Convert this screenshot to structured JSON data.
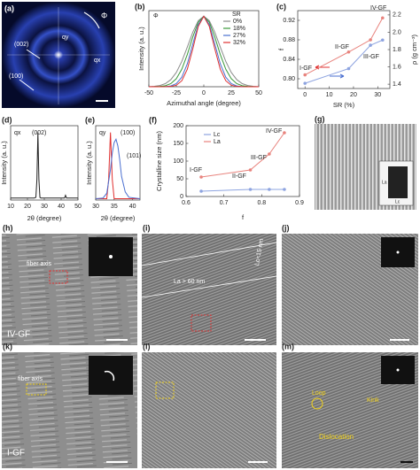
{
  "chart_data": [
    {
      "type": "line",
      "panel": "(b)",
      "xlabel": "Azimuthal angle (degree)",
      "ylabel": "Intensity (a. u.)",
      "annotations": [
        {
          "text": "Φ",
          "color": "#222"
        }
      ],
      "legend_title": "SR",
      "x": [
        -50,
        -45,
        -40,
        -35,
        -30,
        -25,
        -20,
        -15,
        -10,
        -5,
        0,
        5,
        10,
        15,
        20,
        25,
        30,
        35,
        40,
        45,
        50
      ],
      "series": [
        {
          "name": "0%",
          "color": "#8c8c8c",
          "values": [
            0.002,
            0.006,
            0.017,
            0.044,
            0.101,
            0.203,
            0.36,
            0.563,
            0.775,
            0.938,
            1,
            0.938,
            0.775,
            0.563,
            0.36,
            0.203,
            0.101,
            0.044,
            0.017,
            0.006,
            0.002
          ]
        },
        {
          "name": "18%",
          "color": "#3a9a3a",
          "values": [
            0,
            0.001,
            0.004,
            0.014,
            0.044,
            0.114,
            0.249,
            0.458,
            0.707,
            0.917,
            1,
            0.917,
            0.707,
            0.458,
            0.249,
            0.114,
            0.044,
            0.014,
            0.004,
            0.001,
            0
          ]
        },
        {
          "name": "27%",
          "color": "#4a6fd0",
          "values": [
            0,
            0,
            0,
            0.002,
            0.011,
            0.044,
            0.135,
            0.325,
            0.607,
            0.882,
            1,
            0.882,
            0.607,
            0.325,
            0.135,
            0.044,
            0.011,
            0.002,
            0,
            0,
            0
          ]
        },
        {
          "name": "32%",
          "color": "#e03030",
          "values": [
            0,
            0,
            0,
            0.001,
            0.004,
            0.021,
            0.085,
            0.249,
            0.539,
            0.857,
            1,
            0.857,
            0.539,
            0.249,
            0.085,
            0.021,
            0.004,
            0.001,
            0,
            0,
            0
          ]
        }
      ],
      "xlim": [
        -50,
        50
      ],
      "xticks": [
        -50,
        -25,
        0,
        25,
        50
      ],
      "ylim": [
        0,
        1.08
      ]
    },
    {
      "type": "line",
      "panel": "(c)",
      "xlabel": "SR (%)",
      "ylabel": "f",
      "y2label": "ρ (g cm⁻³)",
      "markers": true,
      "annotations": [
        {
          "text": "I-GF",
          "color": "#222"
        },
        {
          "text": "II-GF",
          "color": "#222"
        },
        {
          "text": "III-GF",
          "color": "#222"
        },
        {
          "text": "IV-GF",
          "color": "#222"
        }
      ],
      "x": [
        0,
        18,
        27,
        32
      ],
      "series": [
        {
          "color": "#e8837d",
          "values": [
            0.808,
            0.855,
            0.88,
            0.925
          ]
        },
        {
          "color": "#8ea4e0",
          "axis": "y2",
          "values": [
            1.41,
            1.58,
            1.85,
            1.91
          ]
        }
      ],
      "xlim": [
        -3,
        35
      ],
      "xticks": [
        0,
        10,
        20,
        30
      ],
      "ylim": [
        0.78,
        0.94
      ],
      "yticks": [
        {
          "value": 0.8,
          "label": "0.80"
        },
        0.84,
        0.88,
        0.92
      ],
      "y2lim": [
        1.35,
        2.25
      ],
      "y2ticks": [
        1.4,
        1.6,
        1.8,
        {
          "value": 2,
          "label": "2.0"
        },
        2.2
      ]
    },
    {
      "type": "line",
      "panel": "(d)",
      "xlabel": "2θ (degree)",
      "ylabel": "Intensity (a. u.)",
      "annotations": [
        {
          "text": "qx",
          "color": "#222"
        },
        {
          "text": "(002)",
          "color": "#222"
        }
      ],
      "x": [
        10,
        24,
        25,
        25.6,
        26.2,
        26.8,
        27.4,
        28,
        42,
        42.6,
        43.2,
        50
      ],
      "series": [
        {
          "color": "#222",
          "values": [
            0.03,
            0.03,
            0.04,
            0.3,
            1,
            0.3,
            0.04,
            0.03,
            0.03,
            0.07,
            0.03,
            0.03
          ]
        }
      ],
      "xlim": [
        10,
        50
      ],
      "xticks": [
        10,
        20,
        30,
        40,
        50
      ],
      "ylim": [
        0,
        1.1
      ]
    },
    {
      "type": "line",
      "panel": "(e)",
      "xlabel": "2θ (degree)",
      "ylabel": "Intensity (a. u.)",
      "annotations": [
        {
          "text": "qy",
          "color": "#222"
        },
        {
          "text": "(100)",
          "color": "#e03030"
        },
        {
          "text": "(101)",
          "color": "#4a6fd0"
        }
      ],
      "series": [
        {
          "color": "#e03030",
          "x": [
            30,
            33,
            33.5,
            34,
            34.5,
            35,
            42
          ],
          "values": [
            0.02,
            0.02,
            0.3,
            1,
            0.3,
            0.02,
            0.02
          ]
        },
        {
          "color": "#4a6fd0",
          "x": [
            30,
            32,
            33,
            34,
            34.5,
            35,
            35.5,
            36,
            36.5,
            37,
            38,
            39,
            42
          ],
          "values": [
            0.02,
            0.03,
            0.1,
            0.45,
            0.7,
            0.85,
            0.9,
            0.8,
            0.6,
            0.35,
            0.12,
            0.04,
            0.02
          ]
        }
      ],
      "xlim": [
        30,
        42
      ],
      "xticks": [
        30,
        35,
        40
      ],
      "ylim": [
        0,
        1.1
      ]
    },
    {
      "type": "line",
      "panel": "(f)",
      "xlabel": "f",
      "ylabel": "Crystalline size (nm)",
      "markers": true,
      "annotations": [
        {
          "text": "I-GF",
          "color": "#222"
        },
        {
          "text": "II-GF",
          "color": "#222"
        },
        {
          "text": "III-GF",
          "color": "#222"
        },
        {
          "text": "IV-GF",
          "color": "#222"
        }
      ],
      "x": [
        0.64,
        0.77,
        0.82,
        0.86
      ],
      "series": [
        {
          "name": "Lc",
          "color": "#8ea4e0",
          "values": [
            15,
            20,
            20,
            20
          ]
        },
        {
          "name": "La",
          "color": "#e8837d",
          "values": [
            55,
            75,
            120,
            180
          ]
        }
      ],
      "xlim": [
        0.6,
        0.9
      ],
      "xticks": [
        0.6,
        0.7,
        0.8,
        0.9
      ],
      "ylim": [
        0,
        200
      ],
      "yticks": [
        0,
        50,
        100,
        150,
        200
      ]
    }
  ],
  "images": [
    {
      "panel": "(a)",
      "labels": [
        "qy",
        "Φ",
        "(002)",
        "(100)",
        "qx"
      ]
    },
    {
      "panel": "(g)",
      "labels": [
        "La",
        "Lc"
      ]
    },
    {
      "panel": "(h)",
      "labels": [
        "fiber axis",
        "IV-GF"
      ]
    },
    {
      "panel": "(i)",
      "labels": [
        "La > 60 nm",
        "Lc≈15 nm"
      ]
    },
    {
      "panel": "(j)",
      "labels": []
    },
    {
      "panel": "(k)",
      "labels": [
        "fiber axis",
        "I-GF"
      ]
    },
    {
      "panel": "(l)",
      "labels": []
    },
    {
      "panel": "(m)",
      "labels": [
        "Loop",
        "Kink",
        "Dislocation"
      ]
    }
  ]
}
